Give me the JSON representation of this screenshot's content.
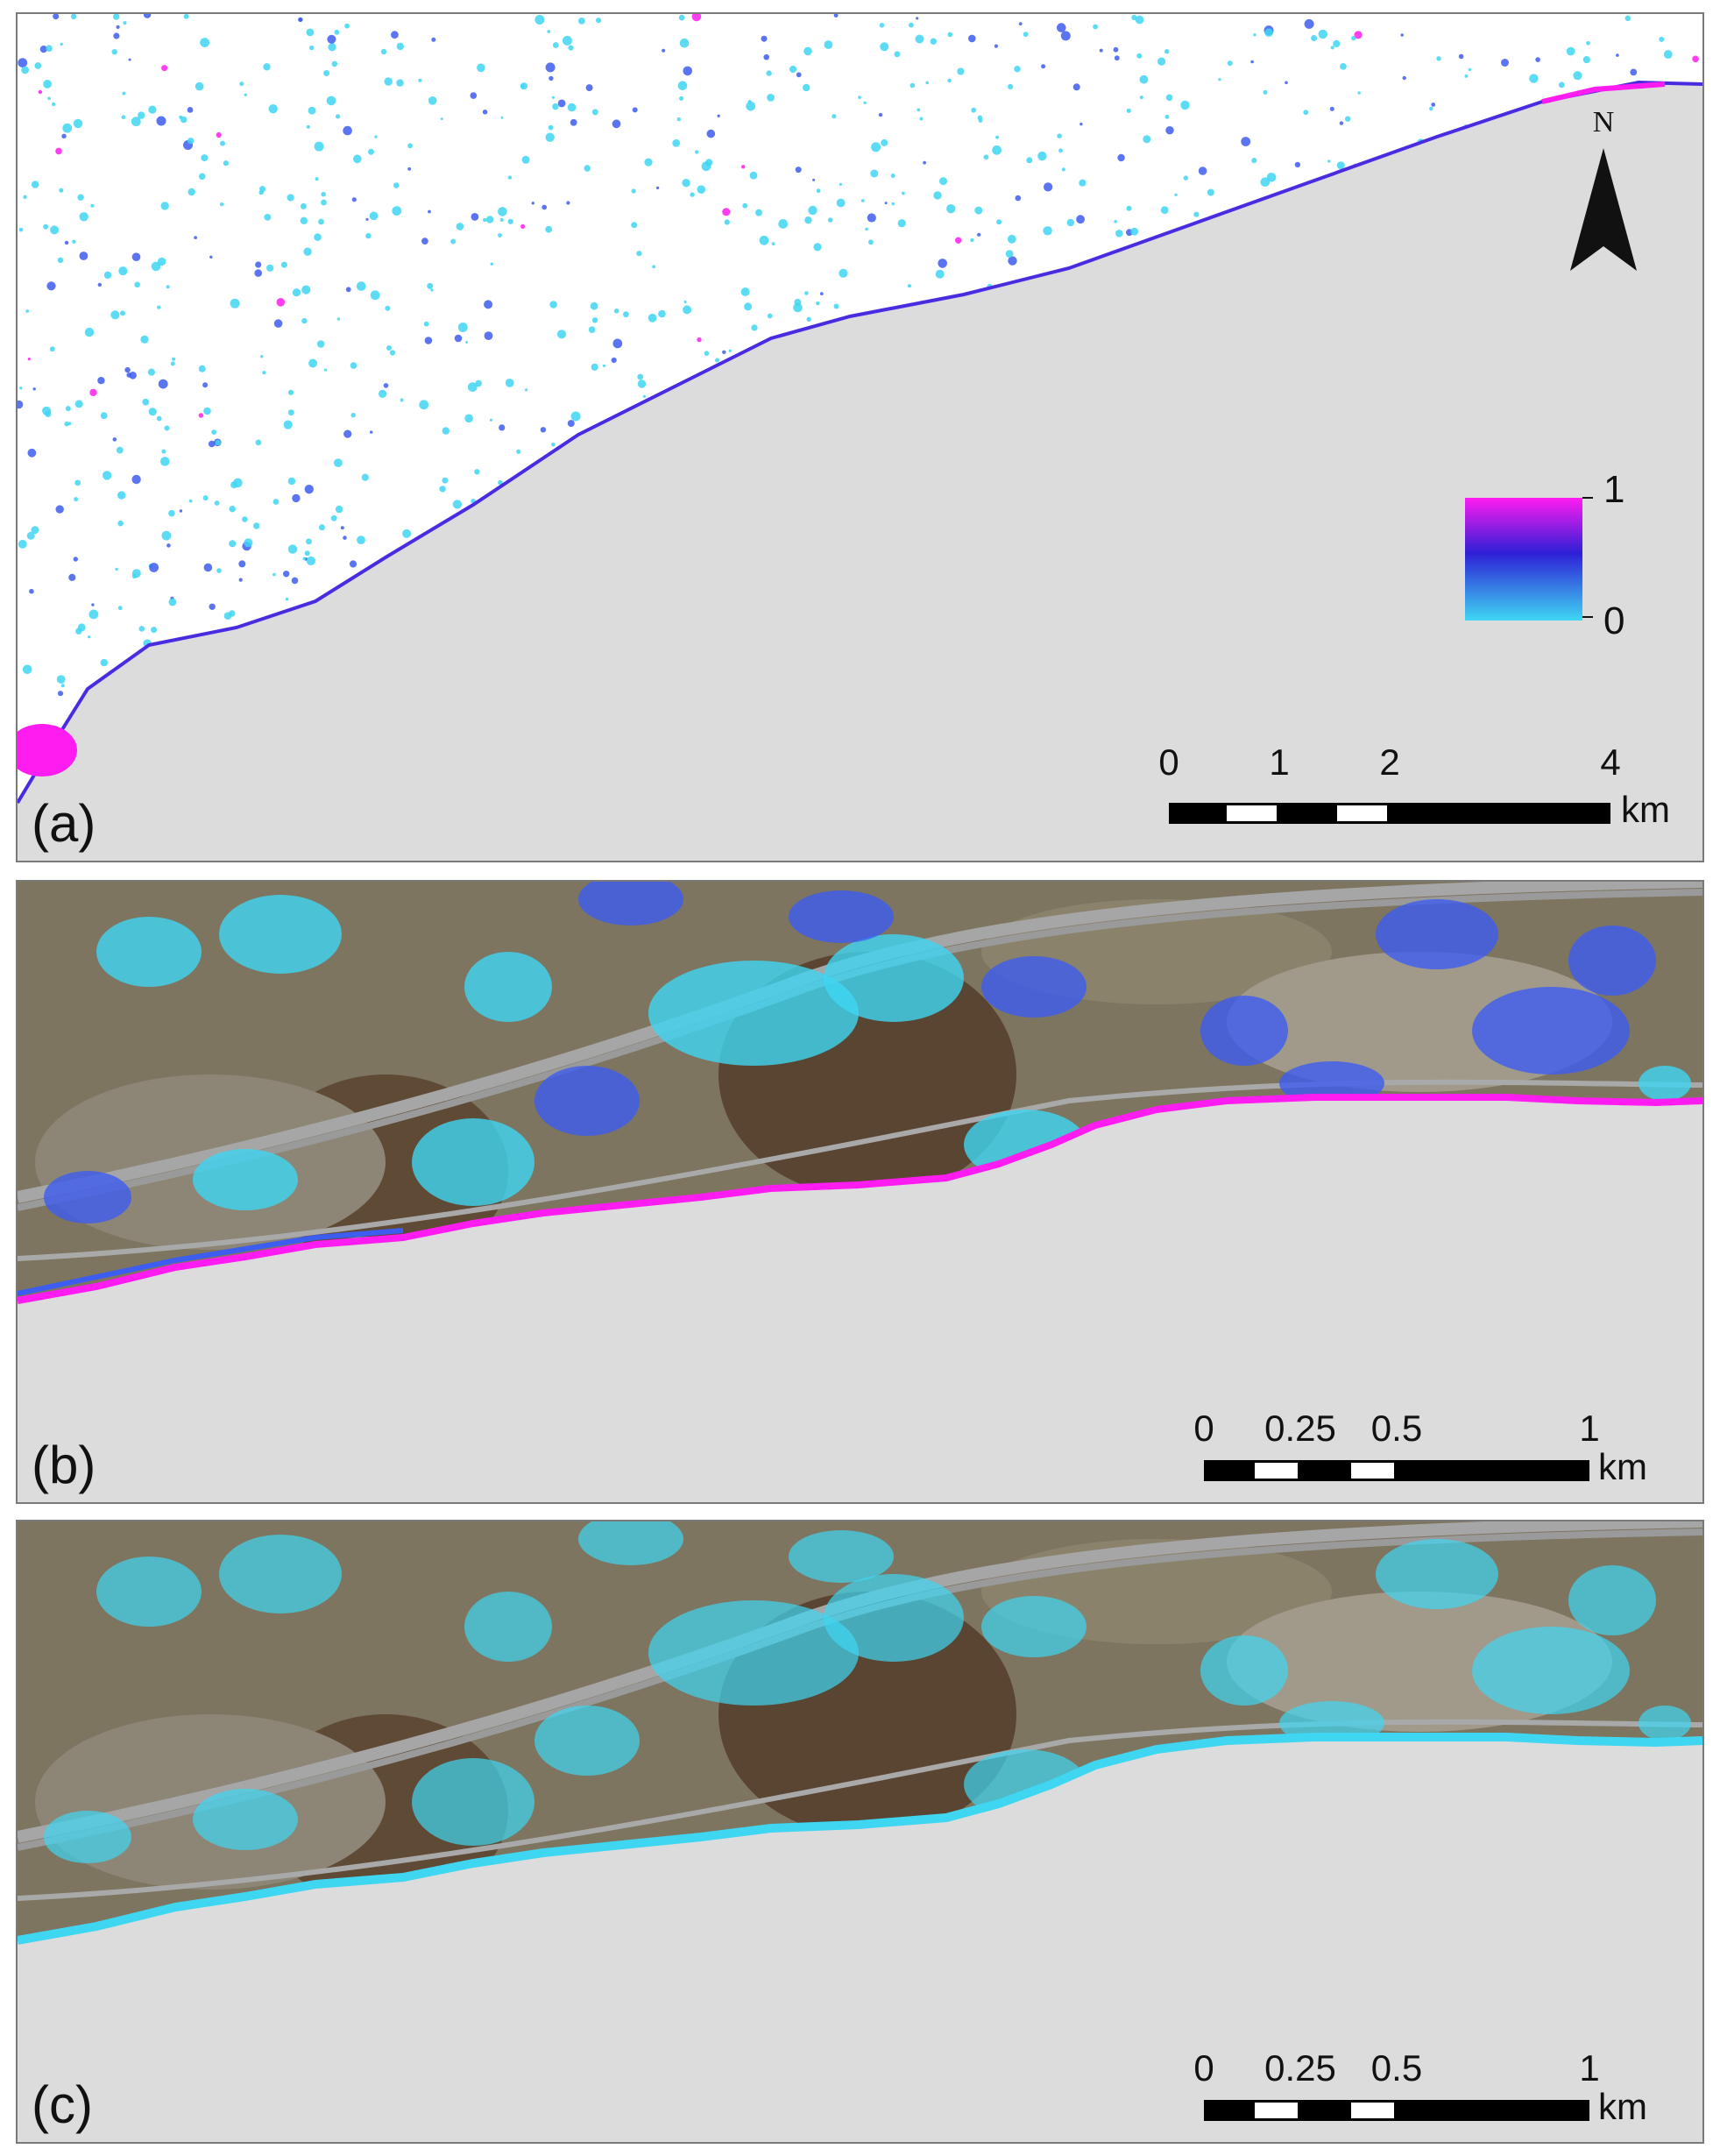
{
  "panels": {
    "a": {
      "label": "(a)",
      "north_label": "N",
      "legend": {
        "max_label": "1",
        "min_label": "0",
        "colors": [
          "#ff1cf0",
          "#2d1fd6",
          "#3fd6f2"
        ]
      },
      "scale": {
        "ticks": [
          "0",
          "1",
          "2",
          "4"
        ],
        "unit": "km"
      }
    },
    "b": {
      "label": "(b)",
      "scale": {
        "ticks": [
          "0",
          "0.25",
          "0.5",
          "1"
        ],
        "unit": "km"
      }
    },
    "c": {
      "label": "(c)",
      "scale": {
        "ticks": [
          "0",
          "0.25",
          "0.5",
          "1"
        ],
        "unit": "km"
      }
    }
  },
  "colors": {
    "sea": "#dcdcdc",
    "land_white": "#ffffff",
    "hazard_low": "#3fd6f2",
    "hazard_mid": "#3d5cf0",
    "hazard_high": "#ff1cf0",
    "satellite_base": "#7d7560"
  }
}
